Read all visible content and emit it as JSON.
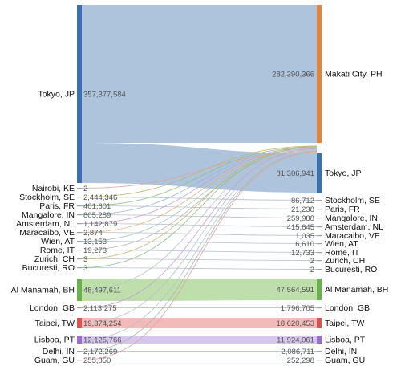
{
  "chart_data": {
    "type": "sankey",
    "title": "",
    "colors": {
      "tokyo": "#3a72b0",
      "makati": "#e0853d",
      "manama": "#6ab04c",
      "taipei": "#d9534f",
      "lisboa": "#9b6fc7",
      "small": "#9fb0c4",
      "flow_main": "#a9c1da",
      "flow_manama": "#a8d390",
      "flow_taipei": "#eea4a2",
      "flow_lisboa": "#c7b3e6"
    },
    "sources": [
      {
        "name": "Tokyo, JP",
        "value_label": "357,377,584",
        "value": 357377584,
        "color": "tokyo"
      },
      {
        "name": "Nairobi, KE",
        "value_label": "2",
        "value": 2,
        "color": "small"
      },
      {
        "name": "Stockholm, SE",
        "value_label": "2,444,346",
        "value": 2444346,
        "color": "small"
      },
      {
        "name": "Paris, FR",
        "value_label": "401,601",
        "value": 401601,
        "color": "small"
      },
      {
        "name": "Mangalore, IN",
        "value_label": "805,289",
        "value": 805289,
        "color": "small"
      },
      {
        "name": "Amsterdam, NL",
        "value_label": "1,142,879",
        "value": 1142879,
        "color": "small"
      },
      {
        "name": "Maracaibo, VE",
        "value_label": "2,874",
        "value": 2874,
        "color": "small"
      },
      {
        "name": "Wien, AT",
        "value_label": "13,153",
        "value": 13153,
        "color": "small"
      },
      {
        "name": "Rome, IT",
        "value_label": "19,273",
        "value": 19273,
        "color": "small"
      },
      {
        "name": "Zurich, CH",
        "value_label": "3",
        "value": 3,
        "color": "small"
      },
      {
        "name": "Bucuresti, RO",
        "value_label": "3",
        "value": 3,
        "color": "small"
      },
      {
        "name": "Al Manamah, BH",
        "value_label": "48,497,611",
        "value": 48497611,
        "color": "manama"
      },
      {
        "name": "London, GB",
        "value_label": "2,113,275",
        "value": 2113275,
        "color": "small"
      },
      {
        "name": "Taipei, TW",
        "value_label": "19,374,254",
        "value": 19374254,
        "color": "taipei"
      },
      {
        "name": "Lisboa, PT",
        "value_label": "12,125,766",
        "value": 12125766,
        "color": "lisboa"
      },
      {
        "name": "Delhi, IN",
        "value_label": "2,172,269",
        "value": 2172269,
        "color": "small"
      },
      {
        "name": "Guam, GU",
        "value_label": "255,850",
        "value": 255850,
        "color": "small"
      }
    ],
    "targets": [
      {
        "name": "Makati City, PH",
        "value_label": "282,390,366",
        "value": 282390366,
        "color": "makati"
      },
      {
        "name": "Tokyo, JP",
        "value_label": "81,306,941",
        "value": 81306941,
        "color": "tokyo"
      },
      {
        "name": "Stockholm, SE",
        "value_label": "86,712",
        "value": 86712,
        "color": "small"
      },
      {
        "name": "Paris, FR",
        "value_label": "21,238",
        "value": 21238,
        "color": "small"
      },
      {
        "name": "Mangalore, IN",
        "value_label": "259,988",
        "value": 259988,
        "color": "small"
      },
      {
        "name": "Amsterdam, NL",
        "value_label": "415,645",
        "value": 415645,
        "color": "small"
      },
      {
        "name": "Maracaibo, VE",
        "value_label": "1,035",
        "value": 1035,
        "color": "small"
      },
      {
        "name": "Wien, AT",
        "value_label": "6,610",
        "value": 6610,
        "color": "small"
      },
      {
        "name": "Rome, IT",
        "value_label": "12,733",
        "value": 12733,
        "color": "small"
      },
      {
        "name": "Zurich, CH",
        "value_label": "2",
        "value": 2,
        "color": "small"
      },
      {
        "name": "Bucuresti, RO",
        "value_label": "2",
        "value": 2,
        "color": "small"
      },
      {
        "name": "Al Manamah, BH",
        "value_label": "47,564,591",
        "value": 47564591,
        "color": "manama"
      },
      {
        "name": "London, GB",
        "value_label": "1,796,705",
        "value": 1796705,
        "color": "small"
      },
      {
        "name": "Taipei, TW",
        "value_label": "18,620,453",
        "value": 18620453,
        "color": "taipei"
      },
      {
        "name": "Lisboa, PT",
        "value_label": "11,924,061",
        "value": 11924061,
        "color": "lisboa"
      },
      {
        "name": "Delhi, IN",
        "value_label": "2,086,711",
        "value": 2086711,
        "color": "small"
      },
      {
        "name": "Guam, GU",
        "value_label": "252,298",
        "value": 252298,
        "color": "small"
      }
    ],
    "flows": [
      {
        "source": "Tokyo, JP",
        "target": "Makati City, PH",
        "color": "flow_main"
      },
      {
        "source": "Tokyo, JP",
        "target": "Tokyo, JP",
        "color": "flow_main"
      },
      {
        "source": "Al Manamah, BH",
        "target": "Al Manamah, BH",
        "color": "flow_manama"
      },
      {
        "source": "Taipei, TW",
        "target": "Taipei, TW",
        "color": "flow_taipei"
      },
      {
        "source": "Lisboa, PT",
        "target": "Lisboa, PT",
        "color": "flow_lisboa"
      },
      {
        "source": "London, GB",
        "target": "London, GB",
        "color": "small"
      },
      {
        "source": "Delhi, IN",
        "target": "Delhi, IN",
        "color": "small"
      },
      {
        "source": "Guam, GU",
        "target": "Guam, GU",
        "color": "small"
      },
      {
        "source": "Stockholm, SE",
        "target": "Stockholm, SE",
        "color": "small"
      },
      {
        "source": "Paris, FR",
        "target": "Paris, FR",
        "color": "small"
      },
      {
        "source": "Mangalore, IN",
        "target": "Mangalore, IN",
        "color": "small"
      },
      {
        "source": "Amsterdam, NL",
        "target": "Amsterdam, NL",
        "color": "small"
      },
      {
        "source": "Maracaibo, VE",
        "target": "Maracaibo, VE",
        "color": "small"
      },
      {
        "source": "Wien, AT",
        "target": "Wien, AT",
        "color": "small"
      },
      {
        "source": "Rome, IT",
        "target": "Rome, IT",
        "color": "small"
      },
      {
        "source": "Zurich, CH",
        "target": "Zurich, CH",
        "color": "small"
      },
      {
        "source": "Bucuresti, RO",
        "target": "Bucuresti, RO",
        "color": "small"
      },
      {
        "source": "Stockholm, SE",
        "target": "Tokyo, JP",
        "color": "small"
      },
      {
        "source": "Paris, FR",
        "target": "Tokyo, JP",
        "color": "small"
      },
      {
        "source": "Mangalore, IN",
        "target": "Tokyo, JP",
        "color": "small"
      },
      {
        "source": "Amsterdam, NL",
        "target": "Tokyo, JP",
        "color": "small"
      },
      {
        "source": "Maracaibo, VE",
        "target": "Tokyo, JP",
        "color": "small"
      },
      {
        "source": "Wien, AT",
        "target": "Tokyo, JP",
        "color": "small"
      },
      {
        "source": "Rome, IT",
        "target": "Tokyo, JP",
        "color": "small"
      },
      {
        "source": "Nairobi, KE",
        "target": "Tokyo, JP",
        "color": "small"
      },
      {
        "source": "Zurich, CH",
        "target": "Tokyo, JP",
        "color": "small"
      },
      {
        "source": "Bucuresti, RO",
        "target": "Tokyo, JP",
        "color": "small"
      },
      {
        "source": "Al Manamah, BH",
        "target": "Tokyo, JP",
        "color": "small"
      },
      {
        "source": "London, GB",
        "target": "Tokyo, JP",
        "color": "small"
      },
      {
        "source": "Taipei, TW",
        "target": "Tokyo, JP",
        "color": "small"
      },
      {
        "source": "Lisboa, PT",
        "target": "Tokyo, JP",
        "color": "small"
      },
      {
        "source": "Delhi, IN",
        "target": "Tokyo, JP",
        "color": "small"
      },
      {
        "source": "Guam, GU",
        "target": "Tokyo, JP",
        "color": "small"
      }
    ]
  }
}
